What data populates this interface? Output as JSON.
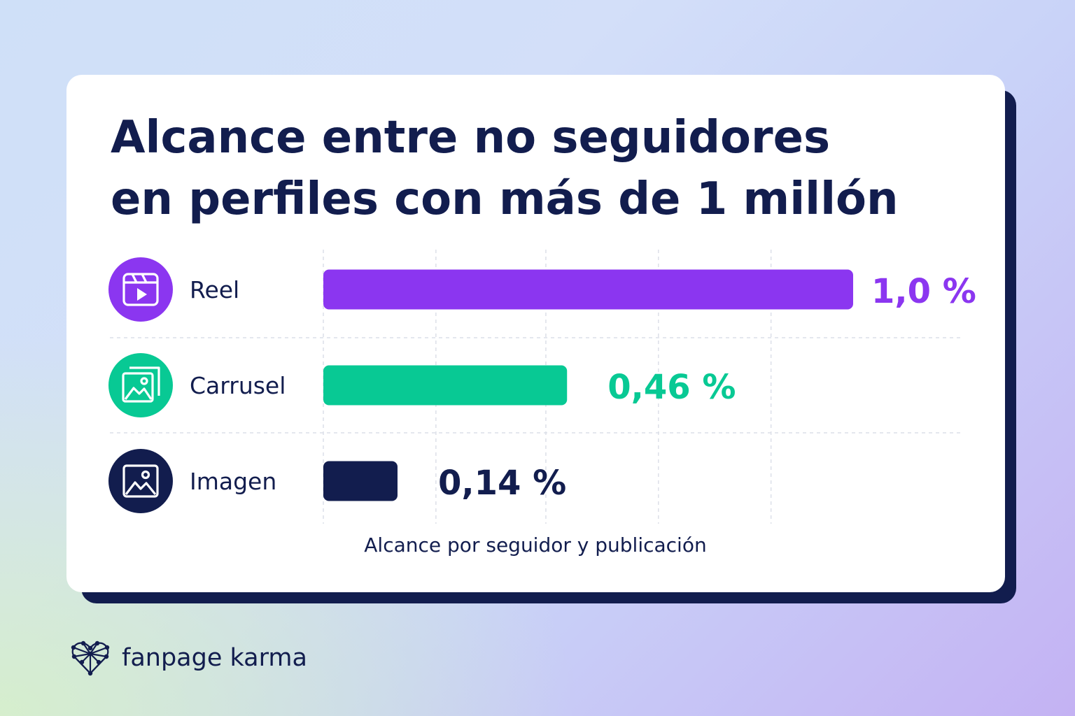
{
  "chart_data": {
    "type": "bar",
    "orientation": "horizontal",
    "title_lines": [
      "Alcance entre no seguidores",
      "en perfiles con más de 1 millón"
    ],
    "xlabel": "Alcance por seguidor y publicación",
    "ylabel": "",
    "xlim": [
      0,
      1.0
    ],
    "grid": true,
    "categories": [
      "Reel",
      "Carrusel",
      "Imagen"
    ],
    "values": [
      1.0,
      0.46,
      0.14
    ],
    "value_labels": [
      "1,0 %",
      "0,46 %",
      "0,14 %"
    ],
    "colors": [
      "#8b36f0",
      "#08c994",
      "#121d4e"
    ],
    "label_colors": [
      "#8b36f0",
      "#08c994",
      "#121d4e"
    ],
    "icons": [
      "reel-icon",
      "carousel-icon",
      "image-icon"
    ]
  },
  "brand": {
    "name": "fanpage karma",
    "icon": "heart-network-icon"
  },
  "colors": {
    "navy": "#121d4e",
    "card": "#ffffff"
  }
}
